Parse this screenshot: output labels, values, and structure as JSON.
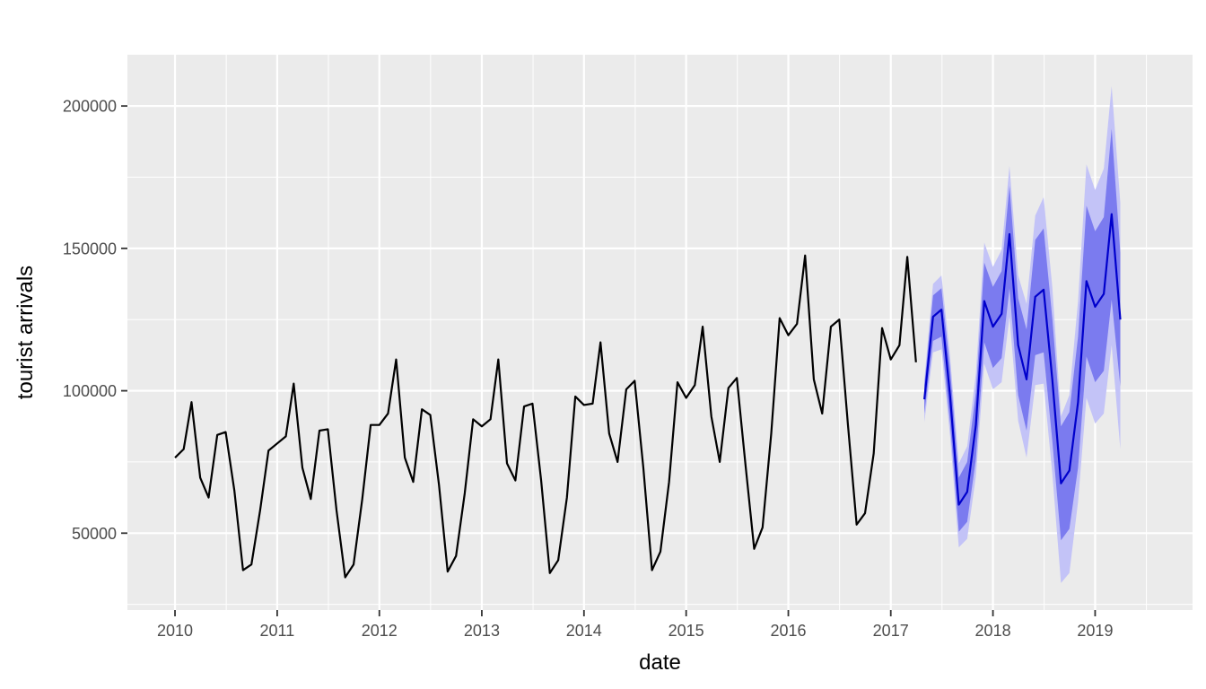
{
  "chart_data": {
    "type": "line",
    "title": "",
    "xlabel": "date",
    "ylabel": "tourist arrivals",
    "x_axis_type": "date",
    "xlim": [
      "2009-07-15",
      "2019-12-15"
    ],
    "ylim": [
      23000,
      218000
    ],
    "x_ticks": [
      {
        "date": "2010-01-01",
        "label": "2010"
      },
      {
        "date": "2011-01-01",
        "label": "2011"
      },
      {
        "date": "2012-01-01",
        "label": "2012"
      },
      {
        "date": "2013-01-01",
        "label": "2013"
      },
      {
        "date": "2014-01-01",
        "label": "2014"
      },
      {
        "date": "2015-01-01",
        "label": "2015"
      },
      {
        "date": "2016-01-01",
        "label": "2016"
      },
      {
        "date": "2017-01-01",
        "label": "2017"
      },
      {
        "date": "2018-01-01",
        "label": "2018"
      },
      {
        "date": "2019-01-01",
        "label": "2019"
      }
    ],
    "y_ticks": [
      {
        "value": 50000,
        "label": "50000"
      },
      {
        "value": 100000,
        "label": "100000"
      },
      {
        "value": 150000,
        "label": "150000"
      },
      {
        "value": 200000,
        "label": "200000"
      }
    ],
    "grid": true,
    "legend": "none",
    "colors": {
      "panel": "#ebebeb",
      "grid": "#ffffff",
      "observed": "#000000",
      "forecast": "#0000cc",
      "band80": "#7b7bef",
      "band95": "#c3c3f7"
    },
    "observed": {
      "start": "2010-01",
      "values": [
        76500,
        79500,
        96000,
        69500,
        62500,
        84500,
        85500,
        65000,
        37000,
        39000,
        58000,
        79000,
        81500,
        84000,
        102500,
        73000,
        62000,
        86000,
        86500,
        58000,
        34500,
        39000,
        62000,
        88000,
        88000,
        92000,
        111000,
        76500,
        68000,
        93500,
        91500,
        67000,
        36500,
        42000,
        64000,
        90000,
        87500,
        90000,
        111000,
        74500,
        68500,
        94500,
        95500,
        68500,
        36000,
        40500,
        62500,
        98000,
        95000,
        95500,
        117000,
        85000,
        75000,
        100500,
        103500,
        73000,
        37000,
        43500,
        68000,
        103000,
        97500,
        102000,
        122500,
        91000,
        75000,
        101000,
        104500,
        74000,
        44500,
        52000,
        85000,
        125500,
        119500,
        123500,
        147500,
        104000,
        92000,
        122500,
        125000,
        88000,
        53000,
        57000,
        78000,
        122000,
        111000,
        116000,
        147000,
        110000
      ]
    },
    "forecast": {
      "start": "2017-05",
      "mean": [
        97000,
        126000,
        128500,
        98000,
        60000,
        64500,
        88000,
        131500,
        122500,
        127000,
        155000,
        116000,
        104000,
        133000,
        135500,
        104000,
        67500,
        72000,
        96000,
        138500,
        129500,
        134000,
        162000,
        125000
      ],
      "lo80": [
        92000,
        117500,
        119000,
        88500,
        50500,
        54000,
        76000,
        117000,
        108000,
        111500,
        136000,
        98500,
        86000,
        112500,
        113500,
        82500,
        47500,
        51500,
        73000,
        112000,
        103000,
        107000,
        132000,
        101500
      ],
      "hi80": [
        102000,
        133500,
        136000,
        107500,
        69500,
        75000,
        99500,
        145000,
        136500,
        142000,
        172000,
        132500,
        121500,
        153000,
        157000,
        125500,
        87500,
        92500,
        119000,
        165000,
        156000,
        161000,
        192000,
        148500
      ],
      "lo95": [
        89000,
        113500,
        114500,
        84000,
        45000,
        48000,
        70000,
        109500,
        100500,
        103000,
        126000,
        89500,
        76500,
        102000,
        102500,
        71000,
        32500,
        36000,
        61000,
        97500,
        88500,
        92000,
        116000,
        79500
      ],
      "hi95": [
        104000,
        137500,
        140500,
        112000,
        74500,
        80500,
        106000,
        152000,
        143500,
        149500,
        179000,
        140500,
        130500,
        161500,
        168000,
        136500,
        91000,
        98500,
        131500,
        179500,
        170500,
        178000,
        207000,
        166000
      ]
    }
  }
}
